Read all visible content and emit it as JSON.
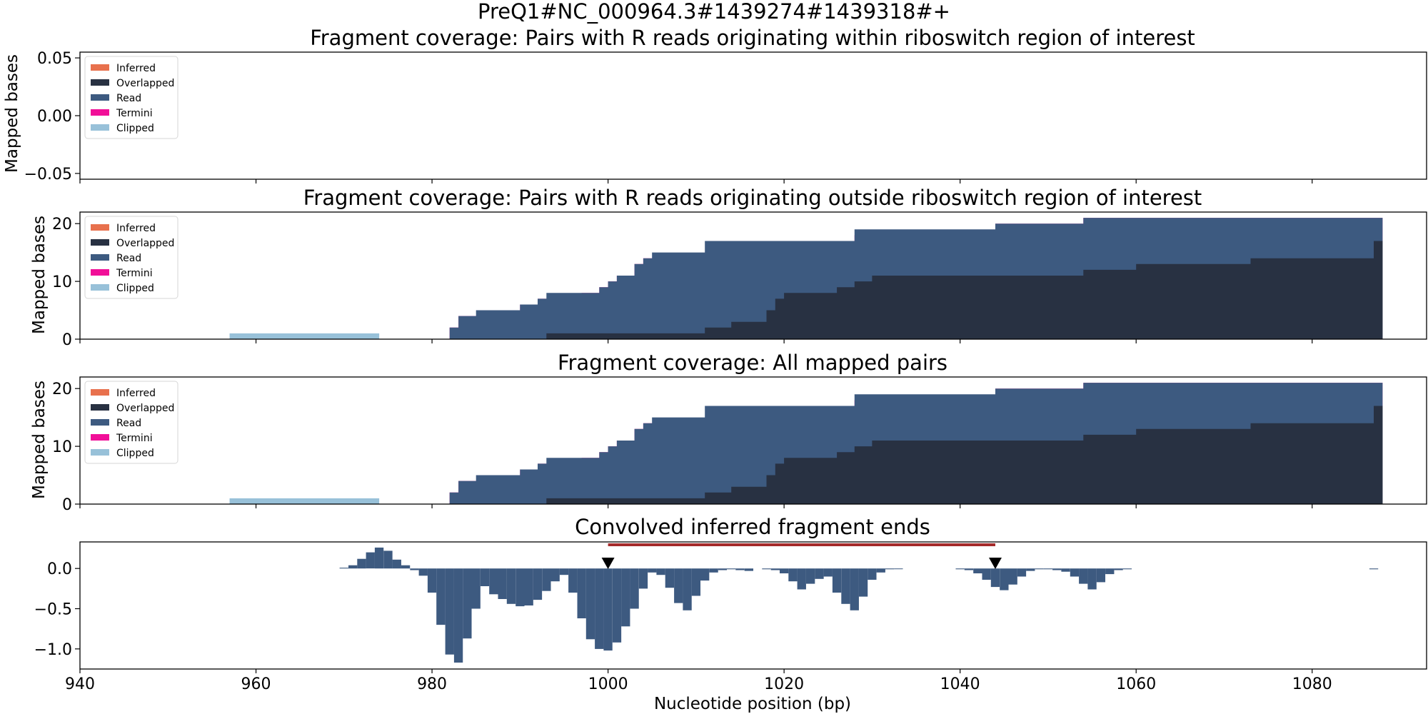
{
  "figure": {
    "suptitle": "PreQ1#NC_000964.3#1439274#1439318#+",
    "xlabel": "Nucleotide position (bp)"
  },
  "colors": {
    "Inferred": "#e8714d",
    "Overlapped": "#283142",
    "Read": "#3d5a80",
    "Termini": "#f10f98",
    "Clipped": "#98c1d9",
    "roi_bar": "#a52a2a",
    "markers": "#000000"
  },
  "chart_data": [
    {
      "type": "area",
      "title": "Fragment coverage: Pairs with R reads originating within riboswitch region of interest",
      "ylabel": "Mapped bases",
      "xlim": [
        940,
        1093
      ],
      "ylim": [
        -0.055,
        0.055
      ],
      "yticks": [
        0.05,
        0.0,
        -0.05
      ],
      "ytick_labels": [
        "0.05",
        "0.00",
        "−0.05"
      ],
      "legend": {
        "placement": "top-left",
        "entries": [
          "Inferred",
          "Overlapped",
          "Read",
          "Termini",
          "Clipped"
        ]
      },
      "series": []
    },
    {
      "type": "area",
      "title": "Fragment coverage: Pairs with R reads originating outside riboswitch region of interest",
      "ylabel": "Mapped bases",
      "xlim": [
        940,
        1093
      ],
      "ylim": [
        0,
        22
      ],
      "yticks": [
        0,
        10,
        20
      ],
      "ytick_labels": [
        "0",
        "10",
        "20"
      ],
      "legend": {
        "placement": "top-left",
        "entries": [
          "Inferred",
          "Overlapped",
          "Read",
          "Termini",
          "Clipped"
        ]
      },
      "series": [
        {
          "name": "Overlapped",
          "x": [
            993,
            1011,
            1014,
            1018,
            1019,
            1020,
            1022,
            1026,
            1028,
            1030,
            1054,
            1056,
            1060,
            1073,
            1087,
            1088
          ],
          "y": [
            1,
            2,
            3,
            5,
            7,
            8,
            8,
            9,
            10,
            11,
            12,
            12,
            13,
            14,
            17,
            18
          ]
        },
        {
          "name": "Read",
          "x": [
            982,
            983,
            985,
            988,
            990,
            992,
            993,
            997,
            999,
            1000,
            1001,
            1003,
            1004,
            1005,
            1008,
            1011,
            1022,
            1028,
            1044,
            1054,
            1088
          ],
          "y": [
            2,
            4,
            5,
            5,
            6,
            7,
            8,
            8,
            9,
            10,
            11,
            13,
            14,
            15,
            15,
            17,
            17,
            19,
            20,
            21,
            22
          ]
        },
        {
          "name": "Termini",
          "x": [
            956,
            981,
            982,
            983,
            988,
            990,
            992,
            997,
            999,
            1000,
            1001,
            1003,
            1004,
            1011,
            1022,
            1028,
            1044,
            1054
          ],
          "y": [
            0,
            0,
            2,
            4,
            5,
            6,
            7,
            8,
            9,
            10,
            11,
            13,
            14,
            15,
            17,
            18,
            20,
            21
          ]
        },
        {
          "name": "Clipped",
          "x_range": [
            957,
            974
          ],
          "y": 1
        }
      ]
    },
    {
      "type": "area",
      "title": "Fragment coverage: All mapped pairs",
      "ylabel": "Mapped bases",
      "xlim": [
        940,
        1093
      ],
      "ylim": [
        0,
        22
      ],
      "yticks": [
        0,
        10,
        20
      ],
      "ytick_labels": [
        "0",
        "10",
        "20"
      ],
      "legend": {
        "placement": "top-left",
        "entries": [
          "Inferred",
          "Overlapped",
          "Read",
          "Termini",
          "Clipped"
        ]
      },
      "series": [
        {
          "name": "Overlapped",
          "x": [
            993,
            1011,
            1014,
            1018,
            1019,
            1020,
            1022,
            1026,
            1028,
            1030,
            1054,
            1056,
            1060,
            1073,
            1087,
            1088
          ],
          "y": [
            1,
            2,
            3,
            5,
            7,
            8,
            8,
            9,
            10,
            11,
            12,
            12,
            13,
            14,
            17,
            18
          ]
        },
        {
          "name": "Read",
          "x": [
            982,
            983,
            985,
            988,
            990,
            992,
            993,
            997,
            999,
            1000,
            1001,
            1003,
            1004,
            1005,
            1008,
            1011,
            1022,
            1028,
            1044,
            1054,
            1088
          ],
          "y": [
            2,
            4,
            5,
            5,
            6,
            7,
            8,
            8,
            9,
            10,
            11,
            13,
            14,
            15,
            15,
            17,
            17,
            19,
            20,
            21,
            22
          ]
        },
        {
          "name": "Termini",
          "x": [
            956,
            981,
            982,
            983,
            988,
            990,
            992,
            997,
            999,
            1000,
            1001,
            1003,
            1004,
            1011,
            1022,
            1028,
            1044,
            1054
          ],
          "y": [
            0,
            0,
            2,
            4,
            5,
            6,
            7,
            8,
            9,
            10,
            11,
            13,
            14,
            15,
            17,
            18,
            20,
            21
          ]
        },
        {
          "name": "Clipped",
          "x_range": [
            957,
            974
          ],
          "y": 1
        }
      ]
    },
    {
      "type": "bar",
      "title": "Convolved inferred fragment ends",
      "xlim": [
        940,
        1093
      ],
      "ylim": [
        -1.25,
        0.33
      ],
      "yticks": [
        0.0,
        -0.5,
        -1.0
      ],
      "ytick_labels": [
        "0.0",
        "−0.5",
        "−1.0"
      ],
      "xticks": [
        940,
        960,
        980,
        1000,
        1020,
        1040,
        1060,
        1080
      ],
      "xtick_labels": [
        "940",
        "960",
        "980",
        "1000",
        "1020",
        "1040",
        "1060",
        "1080"
      ],
      "x": [
        970,
        971,
        972,
        973,
        974,
        975,
        976,
        977,
        978,
        979,
        980,
        981,
        982,
        983,
        984,
        985,
        986,
        987,
        988,
        989,
        990,
        991,
        992,
        993,
        994,
        995,
        996,
        997,
        998,
        999,
        1000,
        1001,
        1002,
        1003,
        1004,
        1005,
        1006,
        1007,
        1008,
        1009,
        1010,
        1011,
        1012,
        1013,
        1014,
        1015,
        1016,
        1018,
        1019,
        1020,
        1021,
        1022,
        1023,
        1024,
        1025,
        1026,
        1027,
        1028,
        1029,
        1030,
        1031,
        1032,
        1033,
        1040,
        1041,
        1042,
        1043,
        1044,
        1045,
        1046,
        1047,
        1048,
        1049,
        1050,
        1051,
        1052,
        1053,
        1054,
        1055,
        1056,
        1057,
        1058,
        1059,
        1087
      ],
      "values": [
        0.01,
        0.04,
        0.12,
        0.2,
        0.26,
        0.22,
        0.11,
        0.04,
        -0.02,
        -0.09,
        -0.3,
        -0.7,
        -1.07,
        -1.17,
        -0.87,
        -0.5,
        -0.22,
        -0.32,
        -0.38,
        -0.44,
        -0.47,
        -0.46,
        -0.39,
        -0.28,
        -0.16,
        -0.08,
        -0.3,
        -0.62,
        -0.88,
        -1.0,
        -1.02,
        -0.92,
        -0.72,
        -0.5,
        -0.25,
        -0.05,
        -0.08,
        -0.24,
        -0.43,
        -0.52,
        -0.34,
        -0.15,
        -0.05,
        -0.02,
        -0.01,
        -0.02,
        -0.03,
        -0.01,
        -0.02,
        -0.06,
        -0.16,
        -0.26,
        -0.19,
        -0.13,
        -0.1,
        -0.3,
        -0.44,
        -0.52,
        -0.35,
        -0.14,
        -0.05,
        -0.01,
        0.0,
        -0.01,
        -0.02,
        -0.06,
        -0.14,
        -0.23,
        -0.27,
        -0.2,
        -0.1,
        -0.03,
        -0.01,
        -0.01,
        -0.02,
        -0.04,
        -0.1,
        -0.19,
        -0.26,
        -0.17,
        -0.07,
        -0.02,
        -0.01,
        -0.01
      ],
      "bar_color": "#3d5a80",
      "markers": [
        1000,
        1044
      ],
      "roi_bar": [
        1000,
        1044
      ]
    }
  ]
}
